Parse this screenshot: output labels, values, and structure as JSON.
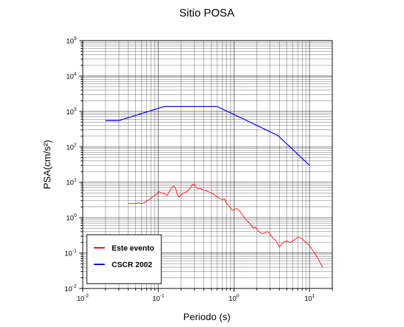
{
  "chart_data": {
    "type": "line",
    "title": "Sitio POSA",
    "xlabel": "Periodo (s)",
    "ylabel": "PSA(cm/s²)",
    "x_scale": "log",
    "y_scale": "log",
    "xlim": [
      0.01,
      20
    ],
    "ylim": [
      0.01,
      100000
    ],
    "x_ticks": [
      {
        "base": "10",
        "exp": "-2"
      },
      {
        "base": "10",
        "exp": "-1"
      },
      {
        "base": "10",
        "exp": "0"
      },
      {
        "base": "10",
        "exp": "1"
      }
    ],
    "y_ticks": [
      {
        "base": "10",
        "exp": "-2"
      },
      {
        "base": "10",
        "exp": "-1"
      },
      {
        "base": "10",
        "exp": "0"
      },
      {
        "base": "10",
        "exp": "1"
      },
      {
        "base": "10",
        "exp": "2"
      },
      {
        "base": "10",
        "exp": "3"
      },
      {
        "base": "10",
        "exp": "4"
      },
      {
        "base": "10",
        "exp": "5"
      }
    ],
    "grid": true,
    "legend_position": "bottom-left",
    "series": [
      {
        "name": "Este evento",
        "color": "#ff0000",
        "x": [
          0.04,
          0.045,
          0.05,
          0.055,
          0.06,
          0.065,
          0.07,
          0.075,
          0.08,
          0.085,
          0.09,
          0.095,
          0.1,
          0.11,
          0.12,
          0.13,
          0.14,
          0.15,
          0.16,
          0.17,
          0.18,
          0.19,
          0.2,
          0.22,
          0.24,
          0.26,
          0.28,
          0.3,
          0.32,
          0.34,
          0.36,
          0.38,
          0.4,
          0.45,
          0.5,
          0.55,
          0.6,
          0.65,
          0.7,
          0.75,
          0.8,
          0.85,
          0.9,
          0.95,
          1.0,
          1.1,
          1.2,
          1.3,
          1.4,
          1.5,
          1.6,
          1.7,
          1.8,
          1.9,
          2.0,
          2.2,
          2.4,
          2.6,
          2.8,
          3.0,
          3.2,
          3.4,
          3.6,
          3.8,
          4.0,
          4.5,
          5.0,
          5.5,
          6.0,
          6.5,
          7.0,
          7.5,
          8.0,
          8.5,
          9.0,
          9.5,
          10.0,
          11.0,
          12.0,
          13.0,
          14.0,
          15.0
        ],
        "y": [
          2.5,
          2.5,
          2.5,
          2.6,
          2.5,
          2.6,
          3.0,
          3.2,
          3.5,
          4.0,
          4.2,
          4.5,
          5.5,
          5.0,
          4.8,
          4.2,
          5.5,
          7.0,
          8.0,
          6.5,
          4.3,
          3.8,
          4.5,
          5.0,
          5.5,
          6.5,
          8.5,
          8.8,
          7.0,
          6.5,
          6.8,
          6.2,
          6.0,
          5.5,
          5.0,
          4.5,
          3.8,
          3.5,
          3.2,
          3.4,
          2.5,
          2.2,
          1.9,
          1.6,
          1.7,
          1.8,
          1.5,
          1.2,
          0.95,
          0.8,
          0.7,
          0.6,
          0.5,
          0.55,
          0.48,
          0.38,
          0.35,
          0.38,
          0.4,
          0.35,
          0.28,
          0.25,
          0.22,
          0.18,
          0.15,
          0.2,
          0.22,
          0.2,
          0.22,
          0.25,
          0.28,
          0.27,
          0.25,
          0.22,
          0.2,
          0.18,
          0.16,
          0.12,
          0.09,
          0.07,
          0.05,
          0.04
        ]
      },
      {
        "name": "CSCR 2002",
        "color": "#0000ff",
        "x": [
          0.02,
          0.03,
          0.12,
          0.6,
          3.8,
          10.0
        ],
        "y": [
          550,
          550,
          1380,
          1380,
          210,
          30
        ]
      }
    ]
  }
}
